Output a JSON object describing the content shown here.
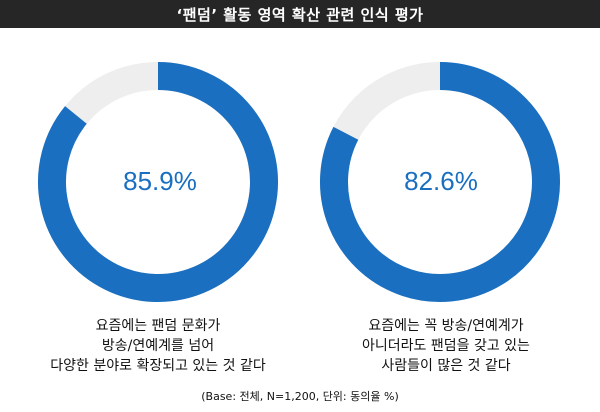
{
  "title": "‘팬덤’ 활동 영역 확산 관련 인식 평가",
  "colors": {
    "accent": "#1a6fc0",
    "remainder": "#eeeeee",
    "title_bg": "#262626"
  },
  "chart_data": [
    {
      "type": "pie",
      "variant": "donut",
      "value": 85.9,
      "label": "85.9%",
      "caption": [
        "요즘에는 팬덤 문화가",
        "방송/연예계를 넘어",
        "다양한 분야로 확장되고 있는 것 같다"
      ]
    },
    {
      "type": "pie",
      "variant": "donut",
      "value": 82.6,
      "label": "82.6%",
      "caption": [
        "요즘에는 꼭 방송/연예계가",
        "아니더라도 팬덤을 갖고 있는",
        "사람들이 많은 것 같다"
      ]
    }
  ],
  "footnote": "(Base: 전체, N=1,200, 단위: 동의율 %)"
}
